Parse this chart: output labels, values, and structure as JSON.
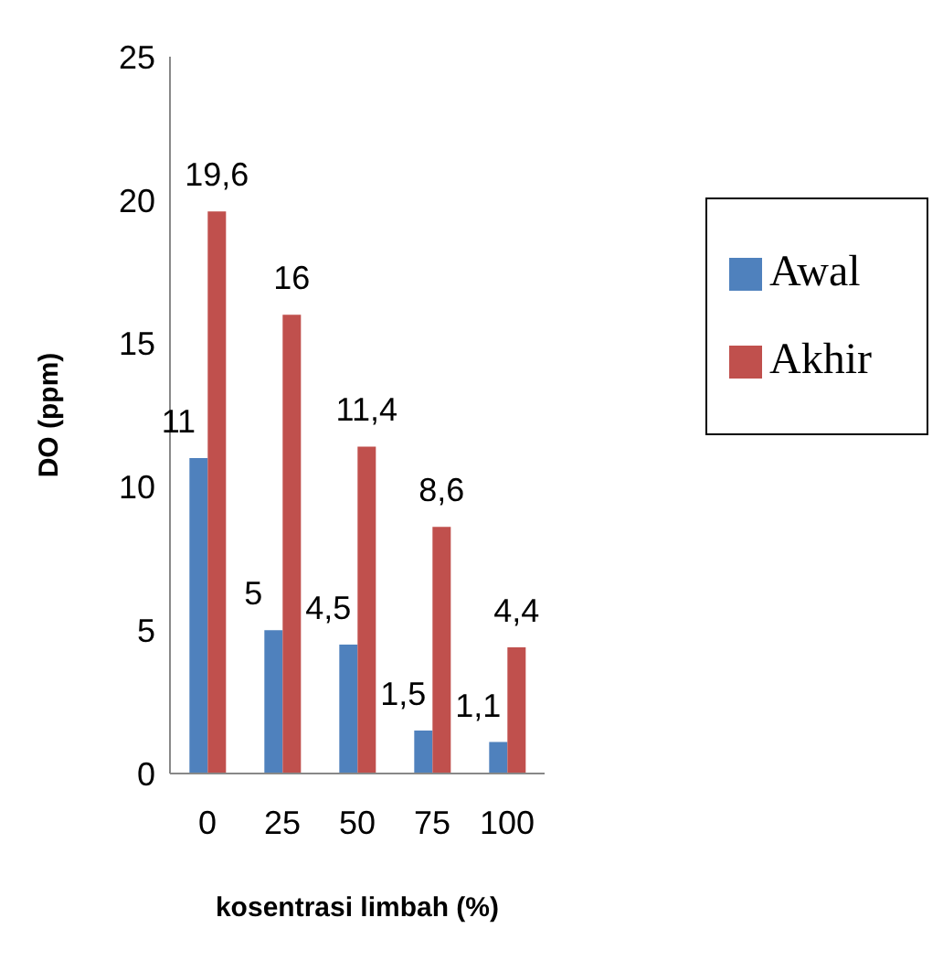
{
  "chart_data": {
    "type": "bar",
    "xlabel": "kosentrasi limbah (%)",
    "ylabel": "DO (ppm)",
    "categories": [
      "0",
      "25",
      "50",
      "75",
      "100"
    ],
    "series": [
      {
        "name": "Awal",
        "color": "#4f81bd",
        "values": [
          11,
          5,
          4.5,
          1.5,
          1.1
        ],
        "value_labels": [
          "11",
          "5",
          "4,5",
          "1,5",
          "1,1"
        ]
      },
      {
        "name": "Akhir",
        "color": "#c0504d",
        "values": [
          19.6,
          16,
          11.4,
          8.6,
          4.4
        ],
        "value_labels": [
          "19,6",
          "16",
          "11,4",
          "8,6",
          "4,4"
        ]
      }
    ],
    "ylim": [
      0,
      25
    ],
    "yticks": [
      0,
      5,
      10,
      15,
      20,
      25
    ],
    "grid": false,
    "legend": "right"
  }
}
